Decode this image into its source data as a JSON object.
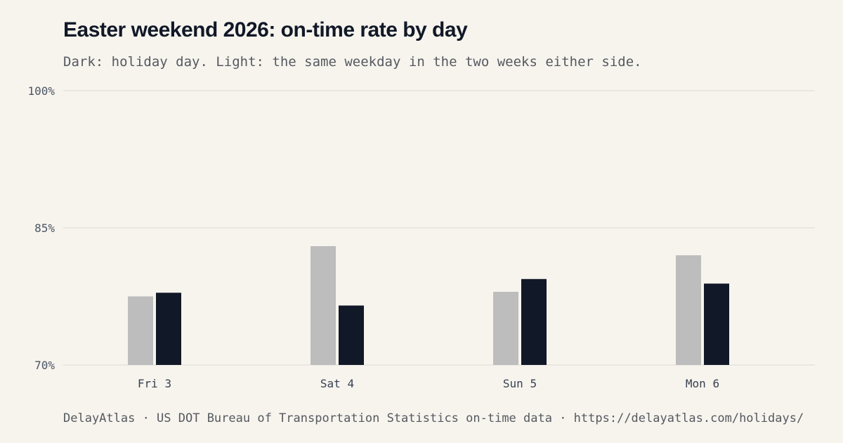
{
  "chart_data": {
    "type": "bar",
    "title": "Easter weekend 2026: on-time rate by day",
    "subtitle": "Dark: holiday day. Light: the same weekday in the two weeks either side.",
    "categories": [
      "Fri 3",
      "Sat 4",
      "Sun 5",
      "Mon 6"
    ],
    "series": [
      {
        "values": [
          77.5,
          83.0,
          78.0,
          82.0
        ],
        "color": "#bdbdbd"
      },
      {
        "values": [
          77.9,
          76.5,
          79.4,
          78.9
        ],
        "color": "#111827"
      }
    ],
    "ylim": [
      70,
      100
    ],
    "yticks": [
      70,
      85,
      100
    ],
    "ytick_labels": [
      "70%",
      "85%",
      "100%"
    ],
    "xlabel": "",
    "ylabel": "",
    "grid": true,
    "gridline_color": "#e5e2dc",
    "footer": "DelayAtlas · US DOT Bureau of Transportation Statistics on-time data · https://delayatlas.com/holidays/"
  }
}
